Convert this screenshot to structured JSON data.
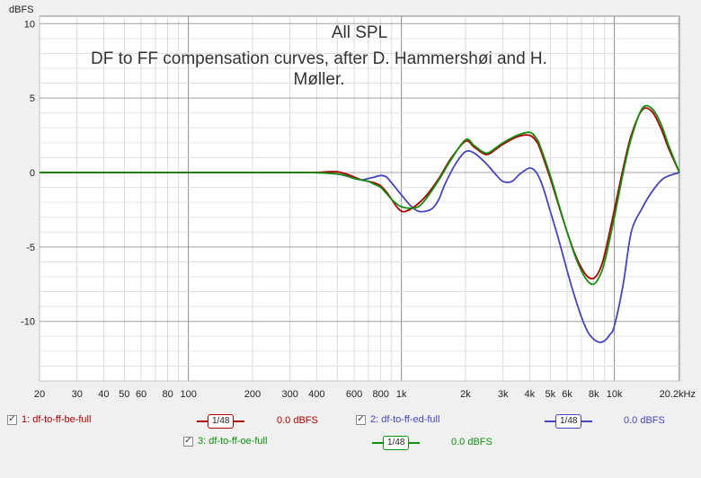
{
  "chart_data": {
    "type": "line",
    "title": "All SPL",
    "subtitle": "DF to FF compensation curves, after D. Hammershøi and H. Møller.",
    "ylabel": "dBFS",
    "xscale": "log",
    "xlim": [
      20,
      20200
    ],
    "ylim": [
      -14,
      10.5
    ],
    "x_ticks": [
      20,
      30,
      40,
      50,
      60,
      80,
      100,
      200,
      300,
      400,
      600,
      800,
      1000,
      2000,
      3000,
      4000,
      5000,
      6000,
      8000,
      10000,
      20200
    ],
    "x_tick_labels": [
      "20",
      "30",
      "40",
      "50",
      "60",
      "80",
      "100",
      "200",
      "300",
      "400",
      "600",
      "800",
      "1k",
      "2k",
      "3k",
      "4k",
      "5k",
      "6k",
      "8k",
      "10k",
      "20.2kHz"
    ],
    "y_ticks": [
      10,
      5,
      0,
      -5,
      -10
    ],
    "y_tick_labels": [
      "10",
      "5",
      "0",
      "-5",
      "-10"
    ],
    "grid": true,
    "legend_position": "bottom",
    "series": [
      {
        "name": "1: df-to-ff-be-full",
        "color": "#b00000",
        "level": "0.0 dBFS",
        "smoothing": "1/48",
        "x": [
          20,
          100,
          350,
          450,
          500,
          550,
          600,
          650,
          700,
          750,
          800,
          850,
          900,
          950,
          1000,
          1050,
          1150,
          1300,
          1500,
          1700,
          2000,
          2200,
          2500,
          2800,
          3000,
          3500,
          4000,
          4300,
          4500,
          5000,
          5500,
          6000,
          6500,
          7000,
          7500,
          8000,
          8500,
          9000,
          10000,
          11000,
          12000,
          13500,
          15000,
          16500,
          18000,
          20200
        ],
        "y": [
          0,
          0,
          0,
          0.05,
          0.05,
          -0.1,
          -0.3,
          -0.5,
          -0.6,
          -0.7,
          -0.9,
          -1.3,
          -1.8,
          -2.3,
          -2.6,
          -2.6,
          -2.3,
          -1.6,
          -0.4,
          0.9,
          2.1,
          1.7,
          1.2,
          1.6,
          1.9,
          2.4,
          2.5,
          2.1,
          1.5,
          -0.4,
          -2.3,
          -4.0,
          -5.4,
          -6.4,
          -7.0,
          -7.1,
          -6.6,
          -5.5,
          -2.5,
          0.3,
          2.5,
          4.2,
          4.1,
          3.0,
          1.6,
          0.0
        ]
      },
      {
        "name": "2: df-to-ff-ed-full",
        "color": "#4545c0",
        "level": "0.0 dBFS",
        "smoothing": "1/48",
        "x": [
          20,
          100,
          350,
          500,
          600,
          650,
          700,
          750,
          800,
          850,
          900,
          1000,
          1100,
          1200,
          1300,
          1400,
          1500,
          1600,
          1800,
          2000,
          2200,
          2500,
          2800,
          3000,
          3300,
          3600,
          4000,
          4300,
          4600,
          5000,
          5500,
          6000,
          6500,
          7000,
          7500,
          8000,
          8500,
          9000,
          9500,
          10000,
          11000,
          12000,
          13500,
          15000,
          17000,
          20200
        ],
        "y": [
          0,
          0,
          0,
          -0.1,
          -0.4,
          -0.5,
          -0.4,
          -0.3,
          -0.2,
          -0.3,
          -0.7,
          -1.5,
          -2.2,
          -2.6,
          -2.6,
          -2.4,
          -1.8,
          -0.8,
          0.6,
          1.4,
          1.3,
          0.6,
          -0.2,
          -0.6,
          -0.6,
          -0.1,
          0.3,
          0.0,
          -0.9,
          -2.6,
          -4.6,
          -6.6,
          -8.3,
          -9.7,
          -10.7,
          -11.2,
          -11.4,
          -11.3,
          -10.9,
          -10.3,
          -7.5,
          -4.0,
          -2.4,
          -1.3,
          -0.4,
          0.0
        ]
      },
      {
        "name": "3: df-to-ff-oe-full",
        "color": "#109010",
        "level": "0.0 dBFS",
        "smoothing": "1/48",
        "x": [
          20,
          100,
          350,
          450,
          500,
          550,
          600,
          650,
          700,
          750,
          800,
          850,
          900,
          950,
          1000,
          1100,
          1200,
          1300,
          1500,
          1700,
          2000,
          2200,
          2500,
          2800,
          3000,
          3500,
          4000,
          4300,
          4500,
          5000,
          5500,
          6000,
          6500,
          7000,
          7500,
          8000,
          8500,
          9000,
          10000,
          11000,
          12000,
          13500,
          15000,
          16500,
          18000,
          20200
        ],
        "y": [
          0,
          0,
          0,
          -0.05,
          -0.1,
          -0.2,
          -0.4,
          -0.5,
          -0.6,
          -0.8,
          -1.0,
          -1.4,
          -1.8,
          -2.1,
          -2.3,
          -2.4,
          -2.3,
          -1.8,
          -0.5,
          0.8,
          2.2,
          1.8,
          1.3,
          1.7,
          2.0,
          2.5,
          2.7,
          2.3,
          1.7,
          -0.2,
          -2.2,
          -4.0,
          -5.5,
          -6.6,
          -7.3,
          -7.5,
          -7.0,
          -6.0,
          -3.0,
          0.0,
          2.3,
          4.3,
          4.3,
          3.3,
          1.8,
          0.0
        ]
      }
    ]
  }
}
